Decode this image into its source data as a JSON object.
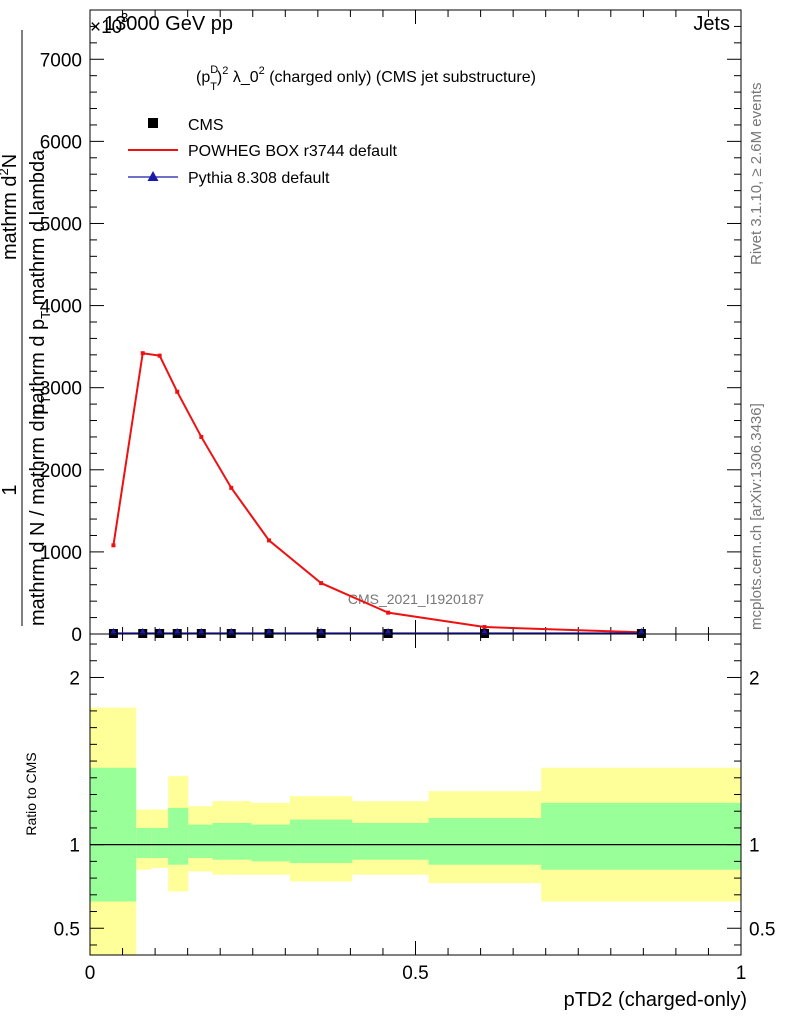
{
  "header": {
    "energy": "13000 GeV pp",
    "category": "Jets",
    "exponent_label": "×10",
    "exponent_power": "3"
  },
  "side_labels": {
    "rivet": "Rivet 3.1.10, ≥ 2.6M events",
    "mcplots": "mcplots.cern.ch [arXiv:1306.3436]"
  },
  "chart_data": [
    {
      "type": "line",
      "title_parts": {
        "open": "(p",
        "sup_D": "D",
        "sub_T": "T",
        "close": ")",
        "sq": "2",
        "lambda": " λ_0",
        "sq2": "2",
        "rest": " (charged only) (CMS jet substructure)"
      },
      "analysis_label": "CMS_2021_I1920187",
      "ylabel_parts": {
        "numerator": "1",
        "denominator": "mathrm d N / mathrm d p",
        "denominator_sub": "T",
        "inner_top": "mathrm d",
        "inner_top_sup": "2",
        "inner_top_end": "N",
        "inner_bottom": "mathrm d p",
        "inner_bottom_sub": "T",
        "inner_bottom_end": " mathrm d lambda"
      },
      "xlim": [
        0,
        1
      ],
      "ylim": [
        0,
        7600
      ],
      "y_ticks": [
        0,
        1000,
        2000,
        3000,
        4000,
        5000,
        6000,
        7000
      ],
      "y_tick_labels": [
        "0",
        "1000",
        "2000",
        "3000",
        "4000",
        "5000",
        "6000",
        "7000"
      ],
      "legend": [
        {
          "label": "CMS",
          "color": "#000000",
          "marker": "square"
        },
        {
          "label": "POWHEG BOX r3744 default",
          "color": "#ee1111",
          "marker": "line"
        },
        {
          "label": "Pythia 8.308 default",
          "color": "#1a1aa8",
          "marker": "triangle"
        }
      ],
      "series": [
        {
          "name": "CMS",
          "x": [
            0.036,
            0.081,
            0.107,
            0.134,
            0.171,
            0.217,
            0.275,
            0.355,
            0.458,
            0.606,
            0.847
          ],
          "y": [
            0,
            0,
            0,
            0,
            0,
            0,
            0,
            0,
            0,
            0,
            0
          ]
        },
        {
          "name": "POWHEG BOX r3744 default",
          "x": [
            0.036,
            0.081,
            0.107,
            0.134,
            0.171,
            0.217,
            0.275,
            0.355,
            0.458,
            0.606,
            0.847
          ],
          "y": [
            1080,
            3420,
            3390,
            2950,
            2400,
            1780,
            1140,
            620,
            260,
            85,
            20
          ]
        },
        {
          "name": "Pythia 8.308 default",
          "x": [
            0.036,
            0.081,
            0.107,
            0.134,
            0.171,
            0.217,
            0.275,
            0.355,
            0.458,
            0.606,
            0.847
          ],
          "y": [
            0,
            0,
            0,
            0,
            0,
            0,
            0,
            0,
            0,
            0,
            0
          ]
        }
      ]
    },
    {
      "type": "area",
      "ylabel": "Ratio to CMS",
      "xlabel": "pTD2 (charged-only)",
      "xlim": [
        0,
        1
      ],
      "ylim": [
        0.34,
        2.26
      ],
      "y_ticks": [
        0.5,
        1,
        2
      ],
      "y_tick_labels": [
        "0.5",
        "1",
        "2"
      ],
      "x_ticks": [
        0,
        0.5,
        1
      ],
      "x_tick_labels": [
        "0",
        "0.5",
        "1"
      ],
      "reference_line": 1,
      "bins": [
        {
          "x0": 0.0,
          "x1": 0.071,
          "yellow": [
            0.34,
            1.82
          ],
          "green": [
            0.66,
            1.46
          ]
        },
        {
          "x0": 0.071,
          "x1": 0.094,
          "yellow": [
            0.85,
            1.21
          ],
          "green": [
            0.92,
            1.1
          ]
        },
        {
          "x0": 0.094,
          "x1": 0.12,
          "yellow": [
            0.86,
            1.21
          ],
          "green": [
            0.92,
            1.1
          ]
        },
        {
          "x0": 0.12,
          "x1": 0.151,
          "yellow": [
            0.72,
            1.41
          ],
          "green": [
            0.88,
            1.22
          ]
        },
        {
          "x0": 0.151,
          "x1": 0.188,
          "yellow": [
            0.84,
            1.23
          ],
          "green": [
            0.92,
            1.12
          ]
        },
        {
          "x0": 0.188,
          "x1": 0.248,
          "yellow": [
            0.82,
            1.26
          ],
          "green": [
            0.91,
            1.13
          ]
        },
        {
          "x0": 0.248,
          "x1": 0.307,
          "yellow": [
            0.82,
            1.25
          ],
          "green": [
            0.9,
            1.12
          ]
        },
        {
          "x0": 0.307,
          "x1": 0.403,
          "yellow": [
            0.78,
            1.29
          ],
          "green": [
            0.89,
            1.15
          ]
        },
        {
          "x0": 0.403,
          "x1": 0.52,
          "yellow": [
            0.82,
            1.26
          ],
          "green": [
            0.91,
            1.13
          ]
        },
        {
          "x0": 0.52,
          "x1": 0.693,
          "yellow": [
            0.77,
            1.32
          ],
          "green": [
            0.88,
            1.16
          ]
        },
        {
          "x0": 0.693,
          "x1": 1.0,
          "yellow": [
            0.66,
            1.46
          ],
          "green": [
            0.85,
            1.25
          ]
        }
      ]
    }
  ]
}
